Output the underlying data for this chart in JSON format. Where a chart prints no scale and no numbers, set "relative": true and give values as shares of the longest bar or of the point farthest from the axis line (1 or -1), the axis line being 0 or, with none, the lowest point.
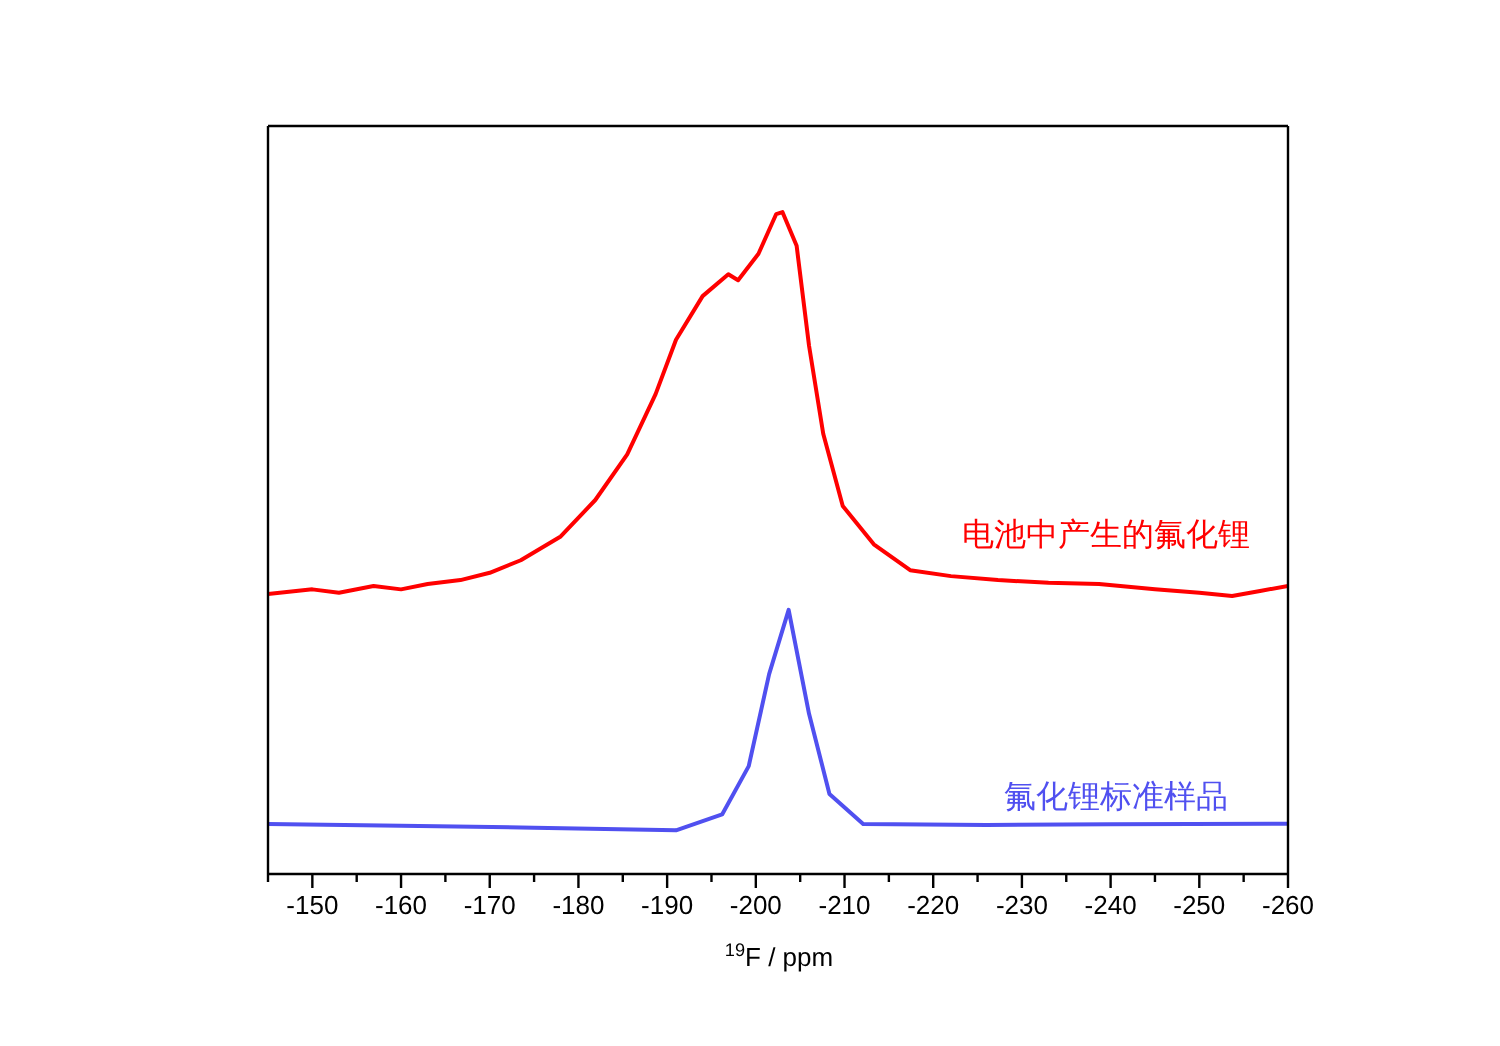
{
  "chart_data": {
    "type": "line",
    "relative": true,
    "xlabel": "$^{19}$F / ppm",
    "xlim": [
      -145,
      -260
    ],
    "xticks": [
      {
        "value": -145,
        "label": null
      },
      -150,
      {
        "value": -155,
        "label": null
      },
      -160,
      {
        "value": -165,
        "label": null
      },
      -170,
      {
        "value": -175,
        "label": null
      },
      -180,
      {
        "value": -185,
        "label": null
      },
      -190,
      {
        "value": -195,
        "label": null
      },
      -200,
      {
        "value": -205,
        "label": null
      },
      -210,
      {
        "value": -215,
        "label": null
      },
      -220,
      {
        "value": -225,
        "label": null
      },
      -230,
      {
        "value": -235,
        "label": null
      },
      -240,
      {
        "value": -245,
        "label": null
      },
      -250,
      {
        "value": -255,
        "label": null
      },
      -260
    ],
    "marker": "none",
    "line_style": "solid",
    "series": [
      {
        "name": "电池中产生的氟化锂",
        "color": "#ff0000",
        "x": [
          -145,
          -150,
          -153,
          -156.9,
          -160,
          -163,
          -166.7,
          -170,
          -173.5,
          -178,
          -181.9,
          -185.5,
          -188.7,
          -191,
          -194,
          -196.9,
          -198,
          -200.3,
          -202.3,
          -203,
          -204.6,
          -206,
          -207.6,
          -209.8,
          -213.3,
          -217.4,
          -222,
          -227.3,
          -233,
          -238.7,
          -245,
          -250,
          -253.7,
          -257,
          -260
        ],
        "values": [
          0.423,
          0.43,
          0.425,
          0.435,
          0.43,
          0.438,
          0.444,
          0.455,
          0.474,
          0.51,
          0.565,
          0.634,
          0.725,
          0.807,
          0.873,
          0.906,
          0.897,
          0.937,
          0.997,
          1,
          0.949,
          0.798,
          0.665,
          0.556,
          0.498,
          0.459,
          0.45,
          0.444,
          0.44,
          0.438,
          0.43,
          0.425,
          0.42,
          0.428,
          0.435
        ]
      },
      {
        "name": "氟化锂标准样品",
        "color": "#5050f0",
        "x": [
          -145,
          -160,
          -175,
          -191,
          -196.2,
          -199.2,
          -201.5,
          -203.7,
          -206,
          -208.3,
          -212.1,
          -226,
          -240,
          -260
        ],
        "values": [
          0.0755,
          0.073,
          0.07,
          0.066,
          0.09,
          0.163,
          0.302,
          0.399,
          0.242,
          0.121,
          0.0755,
          0.074,
          0.075,
          0.076
        ]
      }
    ]
  }
}
